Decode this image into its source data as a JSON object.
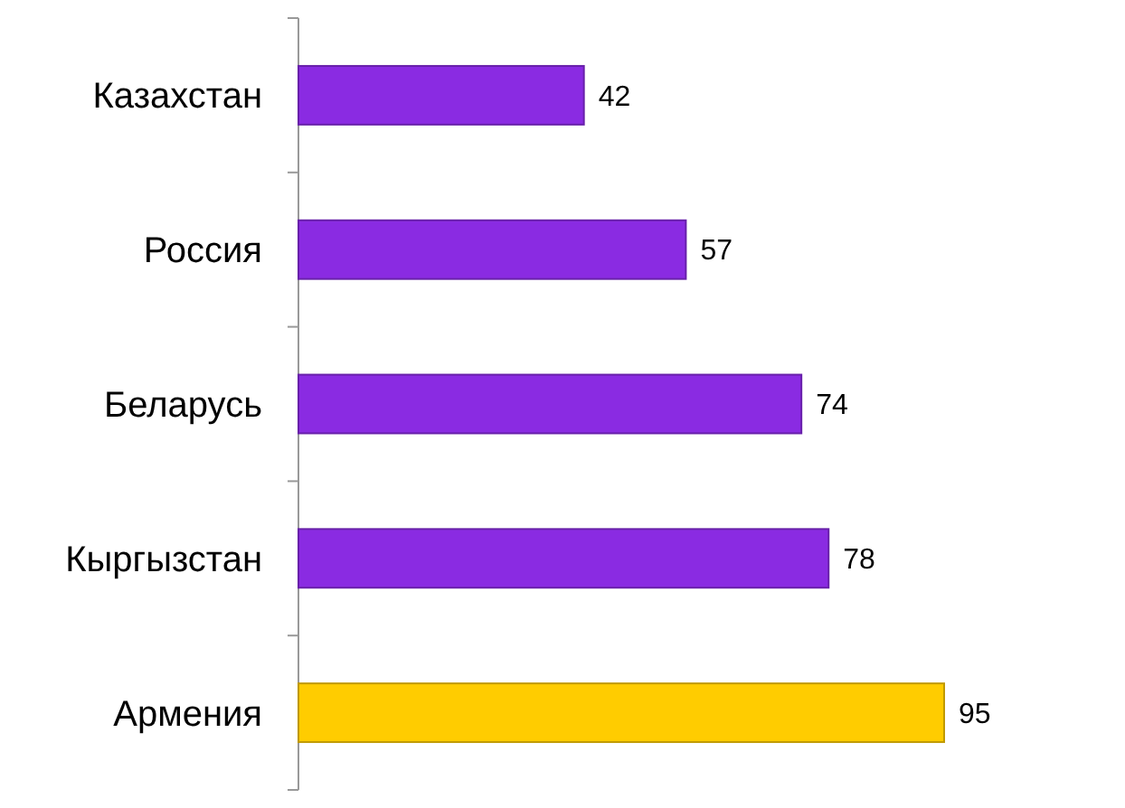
{
  "chart_data": {
    "type": "bar",
    "orientation": "horizontal",
    "categories": [
      "Казахстан",
      "Россия",
      "Беларусь",
      "Кыргызстан",
      "Армения"
    ],
    "values": [
      42,
      57,
      74,
      78,
      95
    ],
    "colors": [
      "#8a2be2",
      "#8a2be2",
      "#8a2be2",
      "#8a2be2",
      "#ffcc00"
    ],
    "data_labels": true
  }
}
